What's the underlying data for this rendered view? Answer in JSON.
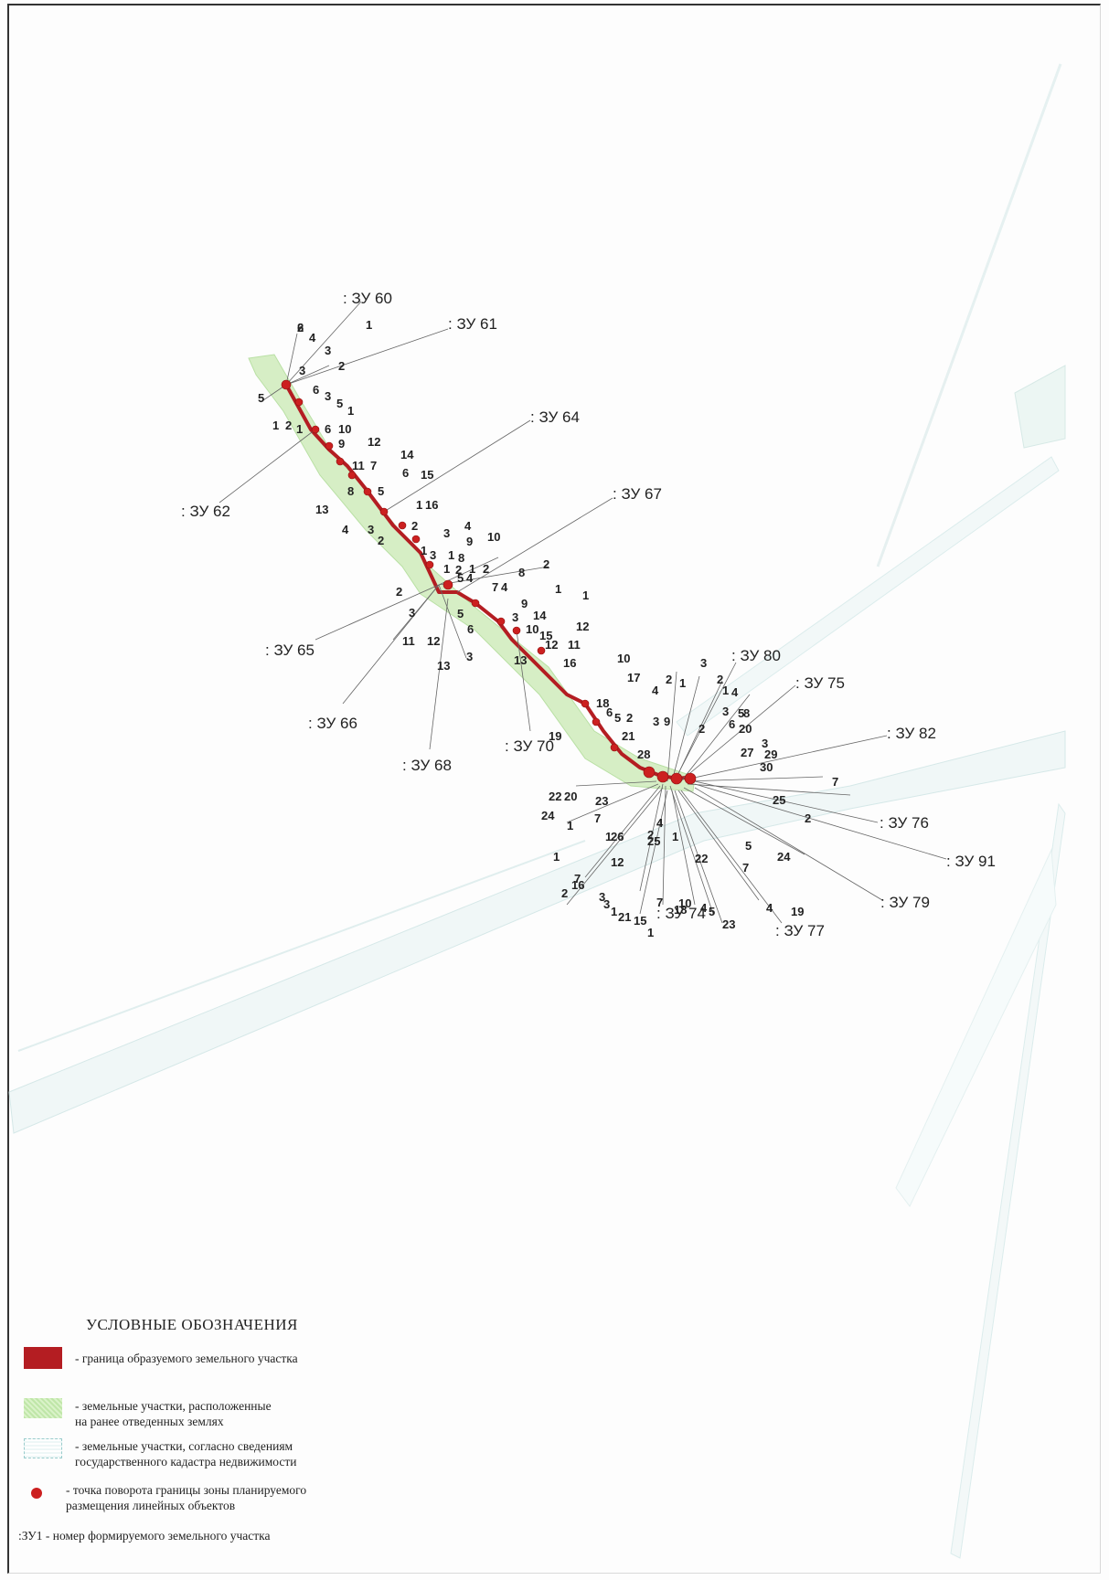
{
  "zu_labels": [
    {
      "text": ": ЗУ 60"
    },
    {
      "text": ": ЗУ 61"
    },
    {
      "text": ": ЗУ 62"
    },
    {
      "text": ": ЗУ 64"
    },
    {
      "text": ": ЗУ 65"
    },
    {
      "text": ": ЗУ 66"
    },
    {
      "text": ": ЗУ 67"
    },
    {
      "text": ": ЗУ 68"
    },
    {
      "text": ": ЗУ 70"
    },
    {
      "text": ": ЗУ 80"
    },
    {
      "text": ": ЗУ 75"
    },
    {
      "text": ": ЗУ 82"
    },
    {
      "text": ": ЗУ 76"
    },
    {
      "text": ": ЗУ 91"
    },
    {
      "text": ": ЗУ 79"
    },
    {
      "text": ": ЗУ 77"
    },
    {
      "text": ": ЗУ 74"
    }
  ],
  "point_labels": [
    "2",
    "4",
    "3",
    "2",
    "3",
    "6",
    "3",
    "5",
    "1",
    "5",
    "1",
    "2",
    "1",
    "6",
    "10",
    "1",
    "9",
    "12",
    "14",
    "11",
    "7",
    "6",
    "15",
    "8",
    "5",
    "13",
    "1",
    "16",
    "4",
    "3",
    "2",
    "2",
    "3",
    "4",
    "9",
    "10",
    "1",
    "3",
    "1",
    "8",
    "1",
    "2",
    "5",
    "4",
    "1",
    "2",
    "8",
    "2",
    "7",
    "4",
    "1",
    "9",
    "1",
    "3",
    "14",
    "2",
    "3",
    "11",
    "12",
    "5",
    "6",
    "13",
    "3",
    "10",
    "15",
    "12",
    "12",
    "11",
    "13",
    "16",
    "10",
    "17",
    "4",
    "2",
    "1",
    "3",
    "2",
    "1",
    "4",
    "2",
    "3",
    "5",
    "6",
    "20",
    "8",
    "18",
    "6",
    "5",
    "2",
    "3",
    "9",
    "19",
    "21",
    "28",
    "3",
    "27",
    "29",
    "30",
    "7",
    "22",
    "20",
    "23",
    "7",
    "24",
    "1",
    "25",
    "2",
    "1",
    "26",
    "25",
    "4",
    "5",
    "24",
    "7",
    "12",
    "1",
    "2",
    "22",
    "3",
    "16",
    "7",
    "10",
    "4",
    "23",
    "1",
    "21",
    "15",
    "18",
    "19",
    "4",
    "1",
    "5",
    "3",
    "7",
    "2",
    "1",
    "6"
  ],
  "legend": {
    "title": "УСЛОВНЫЕ ОБОЗНАЧЕНИЯ",
    "items": [
      {
        "text": "- граница образуемого земельного участка",
        "color": "#b41d22"
      },
      {
        "text": "- земельные участки, расположенные\nна ранее отведенных землях",
        "color": "#bfe6a8"
      },
      {
        "text": "- земельные участки, согласно сведениям\nгосударственного кадастра недвижимости",
        "color": "#9cc"
      },
      {
        "text": "- точка поворота границы зоны планируемого\nразмещения линейных объектов",
        "color": "#cc2020"
      },
      {
        "text": ":ЗУ1 - номер формируемого земельного участка"
      }
    ]
  }
}
